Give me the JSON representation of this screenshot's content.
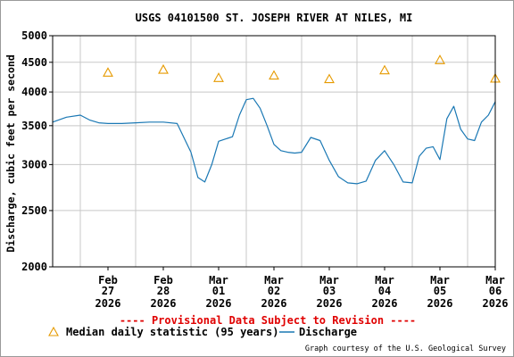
{
  "chart_data": {
    "type": "line",
    "title": "USGS 04101500 ST. JOSEPH RIVER AT NILES, MI",
    "ylabel": "Discharge, cubic feet per second",
    "y_scale": "log",
    "ylim": [
      2000,
      5000
    ],
    "yticks": [
      2000,
      2500,
      3000,
      3500,
      4000,
      4500,
      5000
    ],
    "x_range": [
      "2026-02-26T12:00",
      "2026-03-06T12:00"
    ],
    "xticks": [
      {
        "date": "2026-02-27",
        "month": "Feb",
        "day": "27",
        "year": "2026"
      },
      {
        "date": "2026-02-28",
        "month": "Feb",
        "day": "28",
        "year": "2026"
      },
      {
        "date": "2026-03-01",
        "month": "Mar",
        "day": "01",
        "year": "2026"
      },
      {
        "date": "2026-03-02",
        "month": "Mar",
        "day": "02",
        "year": "2026"
      },
      {
        "date": "2026-03-03",
        "month": "Mar",
        "day": "03",
        "year": "2026"
      },
      {
        "date": "2026-03-04",
        "month": "Mar",
        "day": "04",
        "year": "2026"
      },
      {
        "date": "2026-03-05",
        "month": "Mar",
        "day": "05",
        "year": "2026"
      },
      {
        "date": "2026-03-06",
        "month": "Mar",
        "day": "06",
        "year": "2026"
      }
    ],
    "grid": true,
    "series": [
      {
        "name": "Median daily statistic (95 years)",
        "kind": "marker-triangle",
        "color": "#e69a00",
        "x": [
          "2026-02-27",
          "2026-02-28",
          "2026-03-01",
          "2026-03-02",
          "2026-03-03",
          "2026-03-04",
          "2026-03-05",
          "2026-03-06"
        ],
        "values": [
          4320,
          4370,
          4230,
          4270,
          4210,
          4360,
          4540,
          4220
        ]
      },
      {
        "name": "Discharge",
        "kind": "line",
        "color": "#1a78b4",
        "x": [
          "2026-02-26T12:00",
          "2026-02-26T18:00",
          "2026-02-27T00:00",
          "2026-02-27T04:00",
          "2026-02-27T08:00",
          "2026-02-27T12:00",
          "2026-02-27T18:00",
          "2026-02-28T00:00",
          "2026-02-28T06:00",
          "2026-02-28T12:00",
          "2026-02-28T18:00",
          "2026-03-01T00:00",
          "2026-03-01T03:00",
          "2026-03-01T06:00",
          "2026-03-01T09:00",
          "2026-03-01T12:00",
          "2026-03-01T15:00",
          "2026-03-01T18:00",
          "2026-03-01T21:00",
          "2026-03-02T00:00",
          "2026-03-02T03:00",
          "2026-03-02T06:00",
          "2026-03-02T09:00",
          "2026-03-02T12:00",
          "2026-03-02T15:00",
          "2026-03-02T18:00",
          "2026-03-02T21:00",
          "2026-03-03T00:00",
          "2026-03-03T04:00",
          "2026-03-03T08:00",
          "2026-03-03T12:00",
          "2026-03-03T16:00",
          "2026-03-03T20:00",
          "2026-03-04T00:00",
          "2026-03-04T04:00",
          "2026-03-04T08:00",
          "2026-03-04T12:00",
          "2026-03-04T16:00",
          "2026-03-04T20:00",
          "2026-03-05T00:00",
          "2026-03-05T03:00",
          "2026-03-05T06:00",
          "2026-03-05T09:00",
          "2026-03-05T12:00",
          "2026-03-05T15:00",
          "2026-03-05T18:00",
          "2026-03-05T21:00",
          "2026-03-06T00:00",
          "2026-03-06T03:00",
          "2026-03-06T06:00",
          "2026-03-06T09:00",
          "2026-03-06T12:00"
        ],
        "values": [
          3550,
          3620,
          3650,
          3580,
          3540,
          3530,
          3530,
          3540,
          3550,
          3550,
          3530,
          3150,
          2850,
          2800,
          3000,
          3290,
          3320,
          3350,
          3650,
          3880,
          3900,
          3750,
          3500,
          3250,
          3170,
          3150,
          3140,
          3150,
          3340,
          3300,
          3050,
          2860,
          2790,
          2780,
          2810,
          3050,
          3170,
          3000,
          2800,
          2790,
          3100,
          3200,
          3220,
          3060,
          3600,
          3780,
          3450,
          3320,
          3300,
          3550,
          3650,
          3850
        ]
      }
    ],
    "notice": "---- Provisional Data Subject to Revision ----",
    "notice_color": "#e00000",
    "credit": "Graph courtesy of the U.S. Geological Survey"
  }
}
